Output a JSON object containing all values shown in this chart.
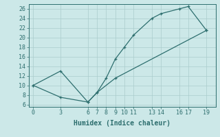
{
  "xlabel": "Humidex (Indice chaleur)",
  "line1_x": [
    0,
    3,
    6,
    7,
    8,
    9,
    10,
    11,
    13,
    14,
    16,
    17,
    19
  ],
  "line1_y": [
    10,
    13,
    6.5,
    8.5,
    11.5,
    15.5,
    18,
    20.5,
    24,
    25,
    26,
    26.5,
    21.5
  ],
  "line2_x": [
    0,
    3,
    6,
    7,
    9,
    19
  ],
  "line2_y": [
    10,
    7.5,
    6.5,
    8.5,
    11.5,
    21.5
  ],
  "line_color": "#2d6e6e",
  "bg_color": "#cce8e8",
  "grid_color": "#aacccc",
  "xlim": [
    -0.5,
    20
  ],
  "ylim": [
    5.5,
    27
  ],
  "xticks": [
    0,
    3,
    6,
    7,
    8,
    9,
    10,
    11,
    13,
    14,
    16,
    17,
    19
  ],
  "yticks": [
    6,
    8,
    10,
    12,
    14,
    16,
    18,
    20,
    22,
    24,
    26
  ],
  "tick_fontsize": 6,
  "label_fontsize": 7
}
